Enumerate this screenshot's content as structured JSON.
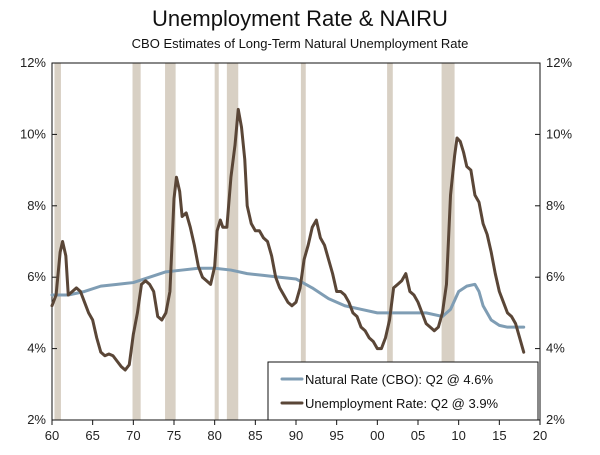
{
  "chart_data": {
    "type": "line",
    "title": "Unemployment Rate & NAIRU",
    "subtitle": "CBO Estimates of Long-Term Natural Unemployment Rate",
    "xlabel": "",
    "ylabel": "",
    "xlim": [
      1960,
      2020
    ],
    "ylim": [
      2,
      12
    ],
    "x_ticks": [
      {
        "value": 1960,
        "label": "60"
      },
      {
        "value": 1965,
        "label": "65"
      },
      {
        "value": 1970,
        "label": "70"
      },
      {
        "value": 1975,
        "label": "75"
      },
      {
        "value": 1980,
        "label": "80"
      },
      {
        "value": 1985,
        "label": "85"
      },
      {
        "value": 1990,
        "label": "90"
      },
      {
        "value": 1995,
        "label": "95"
      },
      {
        "value": 2000,
        "label": "00"
      },
      {
        "value": 2005,
        "label": "05"
      },
      {
        "value": 2010,
        "label": "10"
      },
      {
        "value": 2015,
        "label": "15"
      },
      {
        "value": 2020,
        "label": "20"
      }
    ],
    "y_ticks": [
      {
        "value": 2,
        "label": "2%"
      },
      {
        "value": 4,
        "label": "4%"
      },
      {
        "value": 6,
        "label": "6%"
      },
      {
        "value": 8,
        "label": "8%"
      },
      {
        "value": 10,
        "label": "10%"
      },
      {
        "value": 12,
        "label": "12%"
      }
    ],
    "grid": false,
    "legend_position": "bottom-right",
    "recession_color": "#d8d0c4",
    "recessions": [
      [
        1960.3,
        1961.1
      ],
      [
        1969.9,
        1970.9
      ],
      [
        1973.9,
        1975.2
      ],
      [
        1980.0,
        1980.5
      ],
      [
        1981.5,
        1982.9
      ],
      [
        1990.6,
        1991.2
      ],
      [
        2001.2,
        2001.9
      ],
      [
        2007.9,
        2009.5
      ]
    ],
    "series": [
      {
        "name": "Natural Rate (CBO): Q2 @ 4.6%",
        "color": "#7f9db4",
        "points": [
          [
            1960.0,
            5.5
          ],
          [
            1962.0,
            5.5
          ],
          [
            1964.0,
            5.6
          ],
          [
            1966.0,
            5.75
          ],
          [
            1968.0,
            5.8
          ],
          [
            1970.0,
            5.85
          ],
          [
            1972.0,
            6.0
          ],
          [
            1974.0,
            6.15
          ],
          [
            1976.0,
            6.2
          ],
          [
            1978.0,
            6.25
          ],
          [
            1980.0,
            6.25
          ],
          [
            1982.0,
            6.2
          ],
          [
            1984.0,
            6.1
          ],
          [
            1986.0,
            6.05
          ],
          [
            1988.0,
            6.0
          ],
          [
            1990.0,
            5.95
          ],
          [
            1992.0,
            5.7
          ],
          [
            1994.0,
            5.4
          ],
          [
            1996.0,
            5.2
          ],
          [
            1998.0,
            5.1
          ],
          [
            2000.0,
            5.0
          ],
          [
            2002.0,
            5.0
          ],
          [
            2004.0,
            5.0
          ],
          [
            2006.0,
            5.0
          ],
          [
            2008.0,
            4.9
          ],
          [
            2009.0,
            5.1
          ],
          [
            2010.0,
            5.6
          ],
          [
            2011.0,
            5.75
          ],
          [
            2012.0,
            5.8
          ],
          [
            2012.5,
            5.6
          ],
          [
            2013.0,
            5.2
          ],
          [
            2014.0,
            4.8
          ],
          [
            2015.0,
            4.65
          ],
          [
            2016.0,
            4.6
          ],
          [
            2017.0,
            4.6
          ],
          [
            2018.0,
            4.6
          ]
        ]
      },
      {
        "name": "Unemployment Rate: Q2 @ 3.9%",
        "color": "#5a4637",
        "points": [
          [
            1960.0,
            5.2
          ],
          [
            1960.5,
            5.5
          ],
          [
            1961.0,
            6.7
          ],
          [
            1961.3,
            7.0
          ],
          [
            1961.7,
            6.6
          ],
          [
            1962.0,
            5.5
          ],
          [
            1962.5,
            5.6
          ],
          [
            1963.0,
            5.7
          ],
          [
            1963.5,
            5.6
          ],
          [
            1964.0,
            5.3
          ],
          [
            1964.5,
            5.0
          ],
          [
            1965.0,
            4.8
          ],
          [
            1965.5,
            4.3
          ],
          [
            1966.0,
            3.9
          ],
          [
            1966.5,
            3.8
          ],
          [
            1967.0,
            3.85
          ],
          [
            1967.5,
            3.8
          ],
          [
            1968.0,
            3.65
          ],
          [
            1968.5,
            3.5
          ],
          [
            1969.0,
            3.4
          ],
          [
            1969.5,
            3.55
          ],
          [
            1970.0,
            4.4
          ],
          [
            1970.5,
            5.0
          ],
          [
            1971.0,
            5.8
          ],
          [
            1971.5,
            5.9
          ],
          [
            1972.0,
            5.8
          ],
          [
            1972.5,
            5.6
          ],
          [
            1973.0,
            4.9
          ],
          [
            1973.5,
            4.8
          ],
          [
            1974.0,
            5.0
          ],
          [
            1974.5,
            5.6
          ],
          [
            1975.0,
            8.2
          ],
          [
            1975.3,
            8.8
          ],
          [
            1975.7,
            8.4
          ],
          [
            1976.0,
            7.7
          ],
          [
            1976.5,
            7.8
          ],
          [
            1977.0,
            7.4
          ],
          [
            1977.5,
            6.9
          ],
          [
            1978.0,
            6.3
          ],
          [
            1978.5,
            6.0
          ],
          [
            1979.0,
            5.9
          ],
          [
            1979.5,
            5.8
          ],
          [
            1980.0,
            6.3
          ],
          [
            1980.3,
            7.3
          ],
          [
            1980.7,
            7.6
          ],
          [
            1981.0,
            7.4
          ],
          [
            1981.5,
            7.4
          ],
          [
            1982.0,
            8.8
          ],
          [
            1982.5,
            9.7
          ],
          [
            1982.9,
            10.7
          ],
          [
            1983.3,
            10.2
          ],
          [
            1983.7,
            9.3
          ],
          [
            1984.0,
            8.0
          ],
          [
            1984.5,
            7.5
          ],
          [
            1985.0,
            7.3
          ],
          [
            1985.5,
            7.3
          ],
          [
            1986.0,
            7.1
          ],
          [
            1986.5,
            7.0
          ],
          [
            1987.0,
            6.6
          ],
          [
            1987.5,
            6.0
          ],
          [
            1988.0,
            5.7
          ],
          [
            1988.5,
            5.5
          ],
          [
            1989.0,
            5.3
          ],
          [
            1989.5,
            5.2
          ],
          [
            1990.0,
            5.3
          ],
          [
            1990.5,
            5.7
          ],
          [
            1991.0,
            6.5
          ],
          [
            1991.5,
            6.9
          ],
          [
            1992.0,
            7.4
          ],
          [
            1992.5,
            7.6
          ],
          [
            1993.0,
            7.1
          ],
          [
            1993.5,
            6.9
          ],
          [
            1994.0,
            6.5
          ],
          [
            1994.5,
            6.1
          ],
          [
            1995.0,
            5.6
          ],
          [
            1995.5,
            5.6
          ],
          [
            1996.0,
            5.5
          ],
          [
            1996.5,
            5.3
          ],
          [
            1997.0,
            5.0
          ],
          [
            1997.5,
            4.9
          ],
          [
            1998.0,
            4.6
          ],
          [
            1998.5,
            4.5
          ],
          [
            1999.0,
            4.3
          ],
          [
            1999.5,
            4.2
          ],
          [
            2000.0,
            4.0
          ],
          [
            2000.5,
            4.0
          ],
          [
            2001.0,
            4.3
          ],
          [
            2001.5,
            4.8
          ],
          [
            2002.0,
            5.7
          ],
          [
            2002.5,
            5.8
          ],
          [
            2003.0,
            5.9
          ],
          [
            2003.5,
            6.1
          ],
          [
            2004.0,
            5.6
          ],
          [
            2004.5,
            5.5
          ],
          [
            2005.0,
            5.3
          ],
          [
            2005.5,
            5.0
          ],
          [
            2006.0,
            4.7
          ],
          [
            2006.5,
            4.6
          ],
          [
            2007.0,
            4.5
          ],
          [
            2007.5,
            4.6
          ],
          [
            2008.0,
            5.0
          ],
          [
            2008.5,
            5.8
          ],
          [
            2009.0,
            8.3
          ],
          [
            2009.5,
            9.4
          ],
          [
            2009.8,
            9.9
          ],
          [
            2010.2,
            9.8
          ],
          [
            2010.6,
            9.5
          ],
          [
            2011.0,
            9.1
          ],
          [
            2011.5,
            9.0
          ],
          [
            2012.0,
            8.3
          ],
          [
            2012.5,
            8.1
          ],
          [
            2013.0,
            7.5
          ],
          [
            2013.5,
            7.2
          ],
          [
            2014.0,
            6.7
          ],
          [
            2014.5,
            6.1
          ],
          [
            2015.0,
            5.6
          ],
          [
            2015.5,
            5.3
          ],
          [
            2016.0,
            5.0
          ],
          [
            2016.5,
            4.9
          ],
          [
            2017.0,
            4.7
          ],
          [
            2017.5,
            4.3
          ],
          [
            2018.0,
            3.9
          ]
        ]
      }
    ]
  }
}
